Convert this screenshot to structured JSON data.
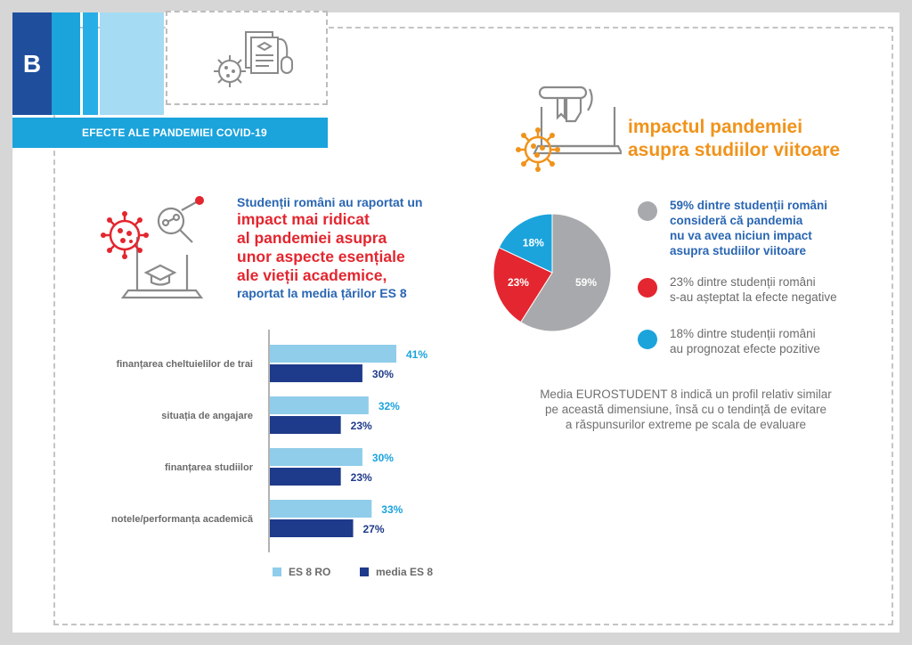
{
  "badge": "B",
  "banner": "EFECTE ALE PANDEMIEI COVID-19",
  "headline": {
    "line1": "Studenții români au raportat un",
    "line2": "impact mai ridicat",
    "line3": "al pandemiei asupra",
    "line4": "unor aspecte esențiale",
    "line5": "ale vieții academice,",
    "line6": "raportat la media țărilor ES 8"
  },
  "impact_title": {
    "line1": "impactul pandemiei",
    "line2": "asupra studiilor viitoare"
  },
  "pie_legend": [
    {
      "lines": [
        "59% dintre studenții români",
        "consideră că pandemia",
        "nu va avea niciun impact",
        "asupra studiilor viitoare"
      ]
    },
    {
      "lines": [
        "23% dintre studenții români",
        "s-au așteptat la efecte negative"
      ]
    },
    {
      "lines": [
        "18% dintre studenții români",
        "au prognozat efecte pozitive"
      ]
    }
  ],
  "note": {
    "line1": "Media EUROSTUDENT 8 indică un profil relativ similar",
    "line2": "pe această dimensiune, însă cu o tendință de evitare",
    "line3": "a răspunsurilor extreme pe scala de evaluare"
  },
  "colors": {
    "dark_blue": "#1f4e9c",
    "mid_blue": "#1ba3dc",
    "light_blue": "#8fcdea",
    "navy": "#1e3a8a",
    "red": "#e3262f",
    "orange": "#f0931b",
    "grey": "#a7a9ac"
  },
  "chart_data": [
    {
      "type": "bar",
      "orientation": "horizontal",
      "categories": [
        "finanțarea cheltuielilor de trai",
        "situația de angajare",
        "finanțarea studiilor",
        "notele/performanța academică"
      ],
      "series": [
        {
          "name": "ES 8 RO",
          "values": [
            41,
            32,
            30,
            33
          ],
          "labels": [
            "41%",
            "32%",
            "30%",
            "33%"
          ],
          "color": "#8fcdea",
          "label_color": "#1ba3dc"
        },
        {
          "name": "media ES 8",
          "values": [
            30,
            23,
            23,
            27
          ],
          "labels": [
            "30%",
            "23%",
            "23%",
            "27%"
          ],
          "color": "#1e3a8a",
          "label_color": "#1e3a8a"
        }
      ],
      "xlim": [
        0,
        50
      ],
      "grid": false,
      "legend": "bottom"
    },
    {
      "type": "pie",
      "slices": [
        {
          "label": "59%",
          "value": 59,
          "color": "#a7a9ac"
        },
        {
          "label": "23%",
          "value": 23,
          "color": "#e3262f"
        },
        {
          "label": "18%",
          "value": 18,
          "color": "#1ba3dc"
        }
      ]
    }
  ]
}
